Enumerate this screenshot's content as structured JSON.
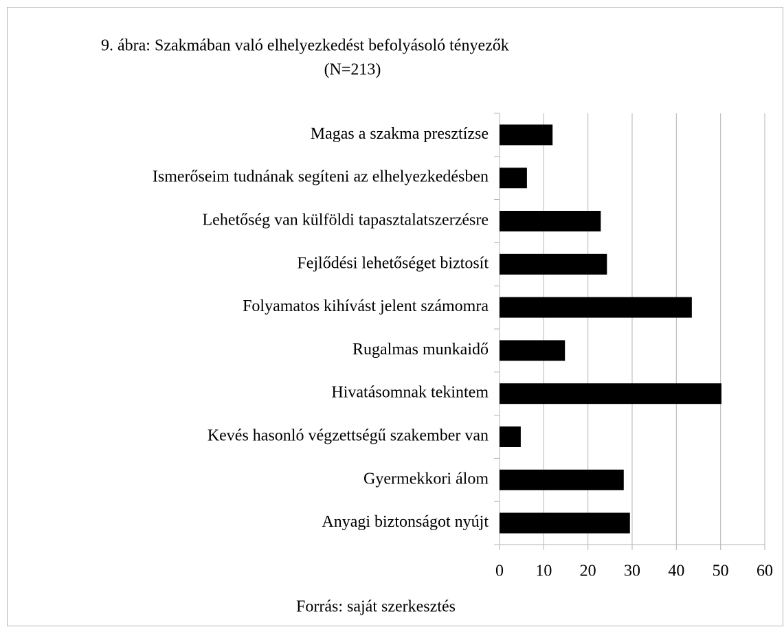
{
  "chart_data": {
    "type": "barh",
    "title": "9. ábra: Szakmában való elhelyezkedést befolyásoló tényezők",
    "subtitle": "(N=213)",
    "note": "Forrás: saját szerkesztés",
    "categories": [
      "Magas a szakma presztízse",
      "Ismerőseim tudnának segíteni az elhelyezkedésben",
      "Lehetőség van külföldi tapasztalatszerzésre",
      "Fejlődési lehetőséget biztosít",
      "Folyamatos kihívást jelent számomra",
      "Rugalmas munkaidő",
      "Hivatásomnak tekintem",
      "Kevés hasonló végzettségű szakember van",
      "Gyermekkori álom",
      "Anyagi biztonságot nyújt"
    ],
    "values": [
      12.0,
      6.2,
      22.9,
      24.3,
      43.5,
      14.8,
      50.2,
      4.8,
      28.1,
      29.5
    ],
    "color": "#000000",
    "xlim": [
      0,
      60
    ],
    "xticks": [
      0,
      10,
      20,
      30,
      40,
      50,
      60
    ],
    "grid": true
  }
}
